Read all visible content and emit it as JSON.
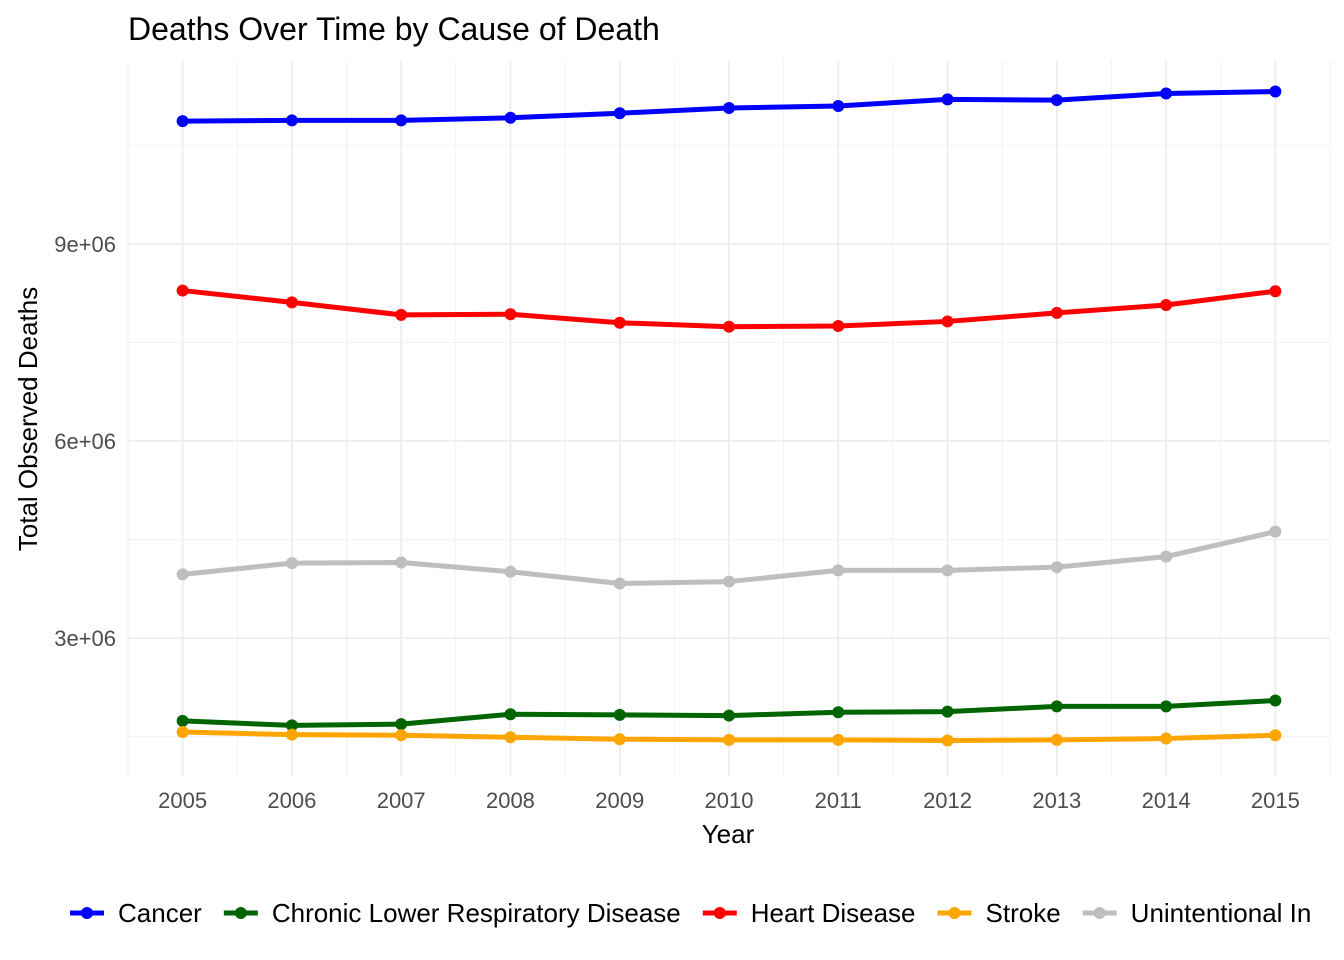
{
  "chart_data": {
    "type": "line",
    "title": "Deaths Over Time by Cause of Death",
    "xlabel": "Year",
    "ylabel": "Total Observed Deaths",
    "x": [
      2005,
      2006,
      2007,
      2008,
      2009,
      2010,
      2011,
      2012,
      2013,
      2014,
      2015
    ],
    "xlim": [
      2004.5,
      2015.5
    ],
    "ylim": [
      900000,
      11800000
    ],
    "yticks": [
      3000000,
      6000000,
      9000000
    ],
    "ytick_labels": [
      "3e+06",
      "6e+06",
      "9e+06"
    ],
    "grid": true,
    "legend_position": "bottom",
    "series": [
      {
        "name": "Cancer",
        "color": "#0000FF",
        "values": [
          10870000,
          10880000,
          10880000,
          10920000,
          10990000,
          11070000,
          11100000,
          11200000,
          11190000,
          11290000,
          11320000
        ]
      },
      {
        "name": "Chronic Lower Respiratory Disease",
        "color": "#006400",
        "values": [
          1740000,
          1670000,
          1690000,
          1840000,
          1830000,
          1820000,
          1870000,
          1880000,
          1960000,
          1960000,
          2050000
        ]
      },
      {
        "name": "Heart Disease",
        "color": "#FF0000",
        "values": [
          8290000,
          8110000,
          7920000,
          7930000,
          7800000,
          7740000,
          7750000,
          7820000,
          7950000,
          8070000,
          8280000
        ]
      },
      {
        "name": "Stroke",
        "color": "#FFA500",
        "values": [
          1570000,
          1530000,
          1520000,
          1490000,
          1460000,
          1450000,
          1450000,
          1440000,
          1450000,
          1470000,
          1520000
        ]
      },
      {
        "name": "Unintentional In",
        "color": "#BEBEBE",
        "values": [
          3970000,
          4140000,
          4150000,
          4010000,
          3830000,
          3860000,
          4030000,
          4030000,
          4080000,
          4240000,
          4620000
        ]
      }
    ]
  }
}
